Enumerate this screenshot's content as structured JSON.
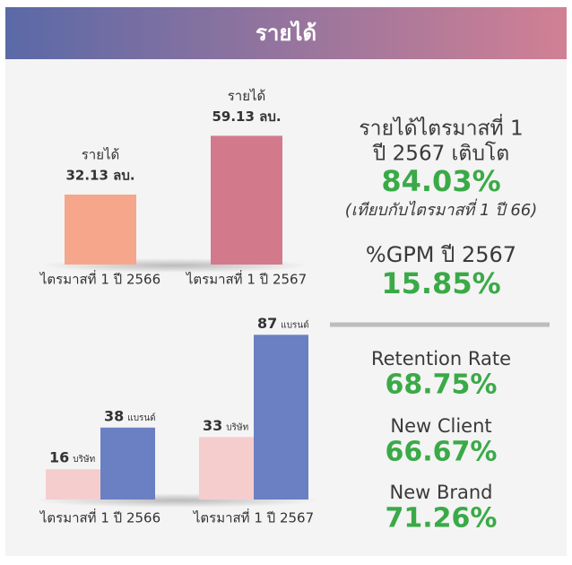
{
  "header": {
    "title": "รายได้"
  },
  "chart_data": [
    {
      "type": "bar",
      "caption": "รายได้",
      "categories": [
        "ไตรมาสที่ 1 ปี 2566",
        "ไตรมาสที่ 1 ปี 2567"
      ],
      "values": [
        32.13,
        59.13
      ],
      "value_labels": [
        "32.13 ลบ.",
        "59.13 ลบ."
      ],
      "colors": [
        "#f5a68b",
        "#d27a8c"
      ],
      "ylim": [
        0,
        70
      ]
    },
    {
      "type": "grouped_bar",
      "categories": [
        "ไตรมาสที่ 1 ปี 2566",
        "ไตรมาสที่ 1 ปี 2567"
      ],
      "series": [
        {
          "name": "บริษัท",
          "color": "#f6cdcd",
          "values": [
            16,
            33
          ]
        },
        {
          "name": "แบรนด์",
          "color": "#6b80c2",
          "values": [
            38,
            87
          ]
        }
      ],
      "ylim": [
        0,
        90
      ]
    }
  ],
  "stats": {
    "growth_title_1": "รายได้ไตรมาสที่ 1",
    "growth_title_2": "ปี 2567 เติบโต",
    "growth_value": "84.03%",
    "growth_note": "(เทียบกับไตรมาสที่ 1 ปี 66)",
    "gpm_title": "%GPM ปี 2567",
    "gpm_value": "15.85%",
    "retention_title": "Retention Rate",
    "retention_value": "68.75%",
    "client_title": "New Client",
    "client_value": "66.67%",
    "brand_title": "New Brand",
    "brand_value": "71.26%"
  }
}
